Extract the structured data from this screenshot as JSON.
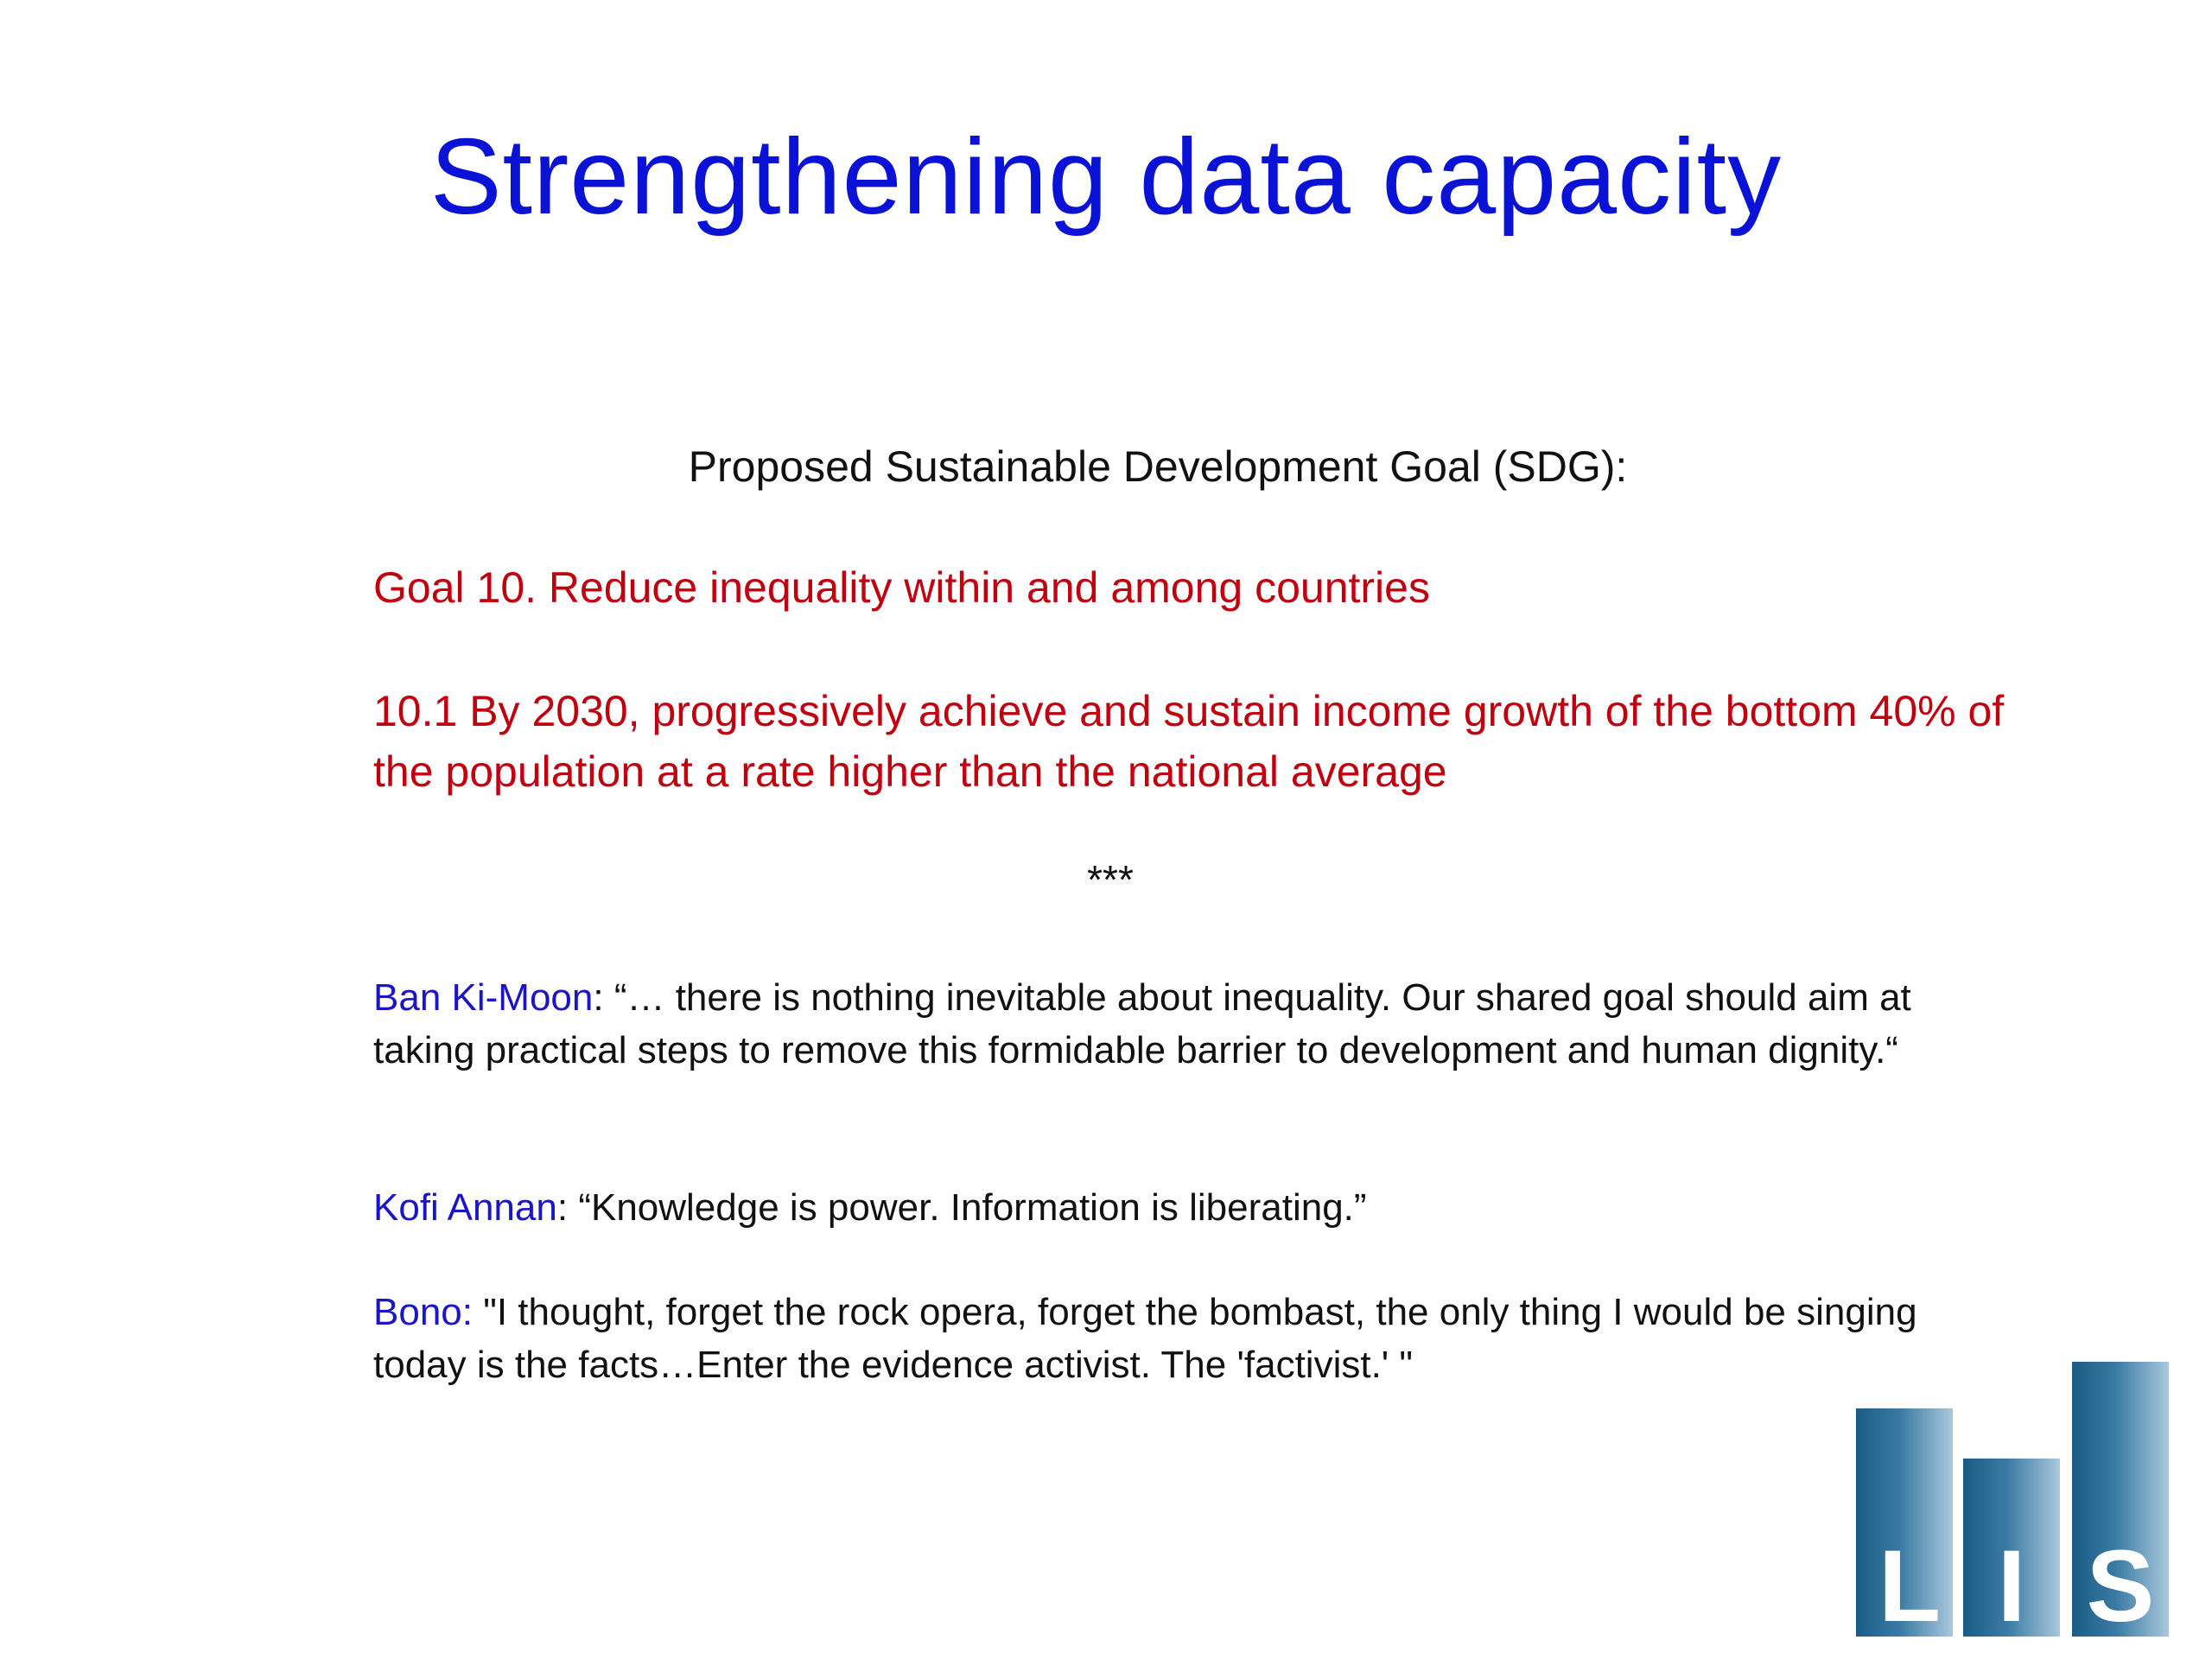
{
  "slide": {
    "title": "Strengthening data capacity",
    "subtitle": "Proposed Sustainable Development Goal (SDG):",
    "goal": "Goal 10. Reduce inequality within and among countries",
    "target": "10.1 By 2030, progressively achieve and sustain income growth of the bottom 40% of the population at a rate higher than the national average",
    "separator": "***",
    "quotes": [
      {
        "speaker": "Ban Ki-Moon",
        "separator": ": ",
        "text": "“… there is nothing inevitable about inequality. Our shared goal should aim at taking practical steps to remove this formidable barrier to development and human dignity.“"
      },
      {
        "speaker": "Kofi Annan",
        "separator": ": ",
        "text": "“Knowledge is power. Information is liberating.”"
      },
      {
        "speaker": "Bono:",
        "separator": " ",
        "text": "\"I thought, forget the rock opera, forget the bombast, the only thing I would be singing today is the facts…Enter the evidence activist. The 'factivist.' \""
      }
    ]
  },
  "logo": {
    "letters": [
      "L",
      "I",
      "S"
    ],
    "colors": {
      "dark": "#1b5b84",
      "mid": "#3a7aa3",
      "light": "#8db6d0",
      "lightest": "#c3d8e6"
    }
  },
  "colors": {
    "title": "#0a12d6",
    "goal_text": "#c0000e",
    "speaker": "#1a16c8",
    "body_text": "#111111"
  }
}
